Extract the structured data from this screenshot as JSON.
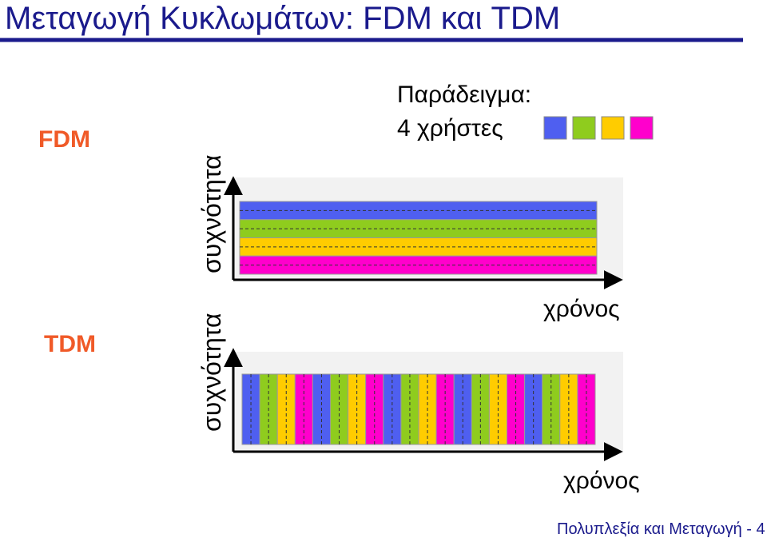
{
  "title": "Μεταγωγή Κυκλωμάτων: FDM και TDM",
  "fdm": {
    "label": "FDM",
    "y_axis_label": "συχνότητα",
    "x_axis_label": "χρόνος"
  },
  "tdm": {
    "label": "TDM",
    "y_axis_label": "συχνότητα",
    "x_axis_label": "χρόνος"
  },
  "example": {
    "heading": "Παράδειγμα:",
    "users": "4 χρήστες"
  },
  "footer": "Πολυπλεξία και Μεταγωγή - 4"
}
